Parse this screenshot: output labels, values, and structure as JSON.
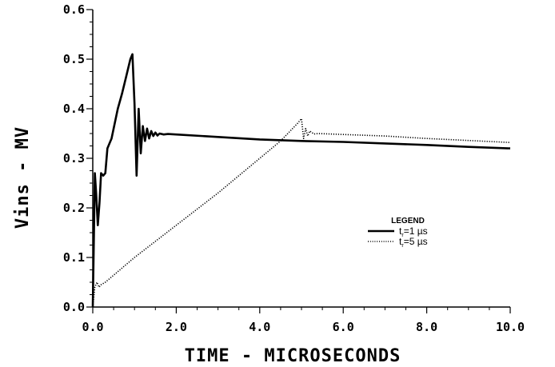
{
  "chart_data": {
    "type": "line",
    "title": "",
    "xlabel": "TIME - MICROSECONDS",
    "ylabel": "Vins - MV",
    "xlim": [
      0,
      10
    ],
    "ylim": [
      0,
      0.6
    ],
    "x_ticks": [
      "0.0",
      "2.0",
      "4.0",
      "6.0",
      "8.0",
      "10.0"
    ],
    "y_ticks": [
      "0.0",
      "0.1",
      "0.2",
      "0.3",
      "0.4",
      "0.5",
      "0.6"
    ],
    "grid": false,
    "legend": {
      "title": "LEGEND",
      "placement": "right",
      "entries": [
        {
          "prefix": "t",
          "sub": "r",
          "suffix": "=1 µs",
          "style": "solid"
        },
        {
          "prefix": "t",
          "sub": "r",
          "suffix": "=5 µs",
          "style": "dotted"
        }
      ]
    },
    "series": [
      {
        "name": "tr=1 µs",
        "style": "solid",
        "x": [
          0.0,
          0.02,
          0.05,
          0.08,
          0.12,
          0.16,
          0.2,
          0.25,
          0.3,
          0.35,
          0.4,
          0.45,
          0.55,
          0.6,
          0.7,
          0.8,
          0.9,
          0.95,
          1.0,
          1.05,
          1.1,
          1.15,
          1.2,
          1.25,
          1.3,
          1.35,
          1.4,
          1.45,
          1.5,
          1.55,
          1.6,
          1.7,
          1.8,
          2.0,
          3.0,
          4.0,
          5.0,
          6.0,
          7.0,
          8.0,
          9.0,
          10.0
        ],
        "y": [
          0.0,
          0.1,
          0.27,
          0.23,
          0.165,
          0.21,
          0.27,
          0.265,
          0.27,
          0.32,
          0.33,
          0.34,
          0.38,
          0.4,
          0.43,
          0.465,
          0.5,
          0.51,
          0.41,
          0.265,
          0.4,
          0.31,
          0.365,
          0.335,
          0.36,
          0.34,
          0.355,
          0.345,
          0.352,
          0.346,
          0.35,
          0.348,
          0.349,
          0.348,
          0.343,
          0.338,
          0.335,
          0.333,
          0.33,
          0.327,
          0.323,
          0.32
        ]
      },
      {
        "name": "tr=5 µs",
        "style": "dotted",
        "x": [
          0.0,
          0.05,
          0.1,
          0.15,
          0.2,
          0.3,
          1.0,
          2.0,
          3.0,
          4.0,
          4.5,
          4.9,
          5.0,
          5.05,
          5.1,
          5.15,
          5.2,
          5.3,
          5.4,
          6.0,
          7.0,
          8.0,
          9.0,
          10.0
        ],
        "y": [
          0.0,
          0.04,
          0.05,
          0.04,
          0.045,
          0.05,
          0.1,
          0.165,
          0.23,
          0.3,
          0.335,
          0.37,
          0.38,
          0.34,
          0.36,
          0.345,
          0.355,
          0.349,
          0.35,
          0.348,
          0.345,
          0.34,
          0.336,
          0.332
        ]
      }
    ]
  }
}
